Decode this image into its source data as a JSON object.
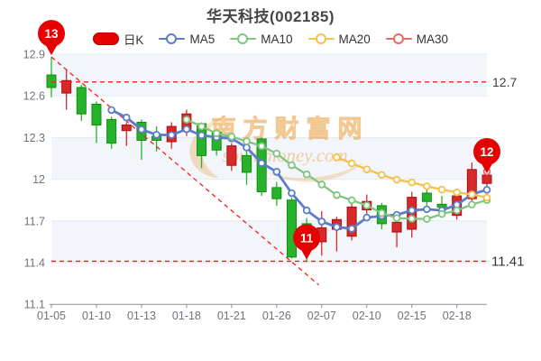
{
  "title": "华天科技(002185)",
  "legend": {
    "items": [
      {
        "label": "日K",
        "type": "rect",
        "color": "#e60000",
        "border": "#b30000"
      },
      {
        "label": "MA5",
        "type": "line",
        "color": "#5b7cc9"
      },
      {
        "label": "MA10",
        "type": "line",
        "color": "#7fc57f"
      },
      {
        "label": "MA20",
        "type": "line",
        "color": "#f5c04c"
      },
      {
        "label": "MA30",
        "type": "line",
        "color": "#e66a66"
      }
    ]
  },
  "watermark": {
    "line1": "南方财富网",
    "line2": "southmoney.com",
    "color": "#e9a249"
  },
  "chart_data": {
    "type": "candlestick",
    "title": "华天科技(002185)",
    "up_color": "#d7282a",
    "up_border": "#a80f10",
    "down_color": "#26b22a",
    "down_border": "#0e8f13",
    "grid_color": "#e3e8f3",
    "band_color": "#f2f6fb",
    "axis_text_color": "#6f737b",
    "axis_line_color": "#919191",
    "ref_line_color": "#ff1a1a",
    "y_axis": {
      "min": 11.1,
      "max": 12.9,
      "ticks": [
        12.9,
        12.6,
        12.3,
        12.0,
        11.7,
        11.4,
        11.1
      ],
      "tick_labels": [
        "12.9",
        "12.6",
        "12.3",
        "12",
        "11.7",
        "11.4",
        "11.1"
      ]
    },
    "x_ticks": {
      "indices": [
        0,
        3,
        6,
        9,
        12,
        15,
        18,
        21,
        24,
        27
      ],
      "labels": [
        "01-05",
        "01-10",
        "01-13",
        "01-18",
        "01-21",
        "01-26",
        "02-07",
        "02-10",
        "02-15",
        "02-18"
      ]
    },
    "candles": [
      {
        "date": "01-05",
        "open": 12.75,
        "high": 12.88,
        "low": 12.59,
        "close": 12.66
      },
      {
        "date": "01-06",
        "open": 12.62,
        "high": 12.79,
        "low": 12.5,
        "close": 12.71
      },
      {
        "date": "01-07",
        "open": 12.66,
        "high": 12.68,
        "low": 12.42,
        "close": 12.47
      },
      {
        "date": "01-10",
        "open": 12.54,
        "high": 12.56,
        "low": 12.26,
        "close": 12.39
      },
      {
        "date": "01-11",
        "open": 12.43,
        "high": 12.45,
        "low": 12.22,
        "close": 12.26
      },
      {
        "date": "01-12",
        "open": 12.35,
        "high": 12.41,
        "low": 12.24,
        "close": 12.39
      },
      {
        "date": "01-13",
        "open": 12.41,
        "high": 12.43,
        "low": 12.14,
        "close": 12.28
      },
      {
        "date": "01-14",
        "open": 12.31,
        "high": 12.38,
        "low": 12.2,
        "close": 12.28
      },
      {
        "date": "01-17",
        "open": 12.27,
        "high": 12.41,
        "low": 12.22,
        "close": 12.38
      },
      {
        "date": "01-18",
        "open": 12.36,
        "high": 12.5,
        "low": 12.31,
        "close": 12.47
      },
      {
        "date": "01-19",
        "open": 12.4,
        "high": 12.41,
        "low": 12.08,
        "close": 12.17
      },
      {
        "date": "01-20",
        "open": 12.34,
        "high": 12.36,
        "low": 12.17,
        "close": 12.21
      },
      {
        "date": "01-21",
        "open": 12.1,
        "high": 12.26,
        "low": 12.06,
        "close": 12.24
      },
      {
        "date": "01-24",
        "open": 12.17,
        "high": 12.2,
        "low": 11.96,
        "close": 12.05
      },
      {
        "date": "01-25",
        "open": 12.29,
        "high": 12.3,
        "low": 11.88,
        "close": 11.91
      },
      {
        "date": "01-26",
        "open": 11.94,
        "high": 11.98,
        "low": 11.81,
        "close": 11.86
      },
      {
        "date": "01-27",
        "open": 11.85,
        "high": 11.87,
        "low": 11.43,
        "close": 11.44
      },
      {
        "date": "01-28",
        "open": 11.68,
        "high": 11.72,
        "low": 11.41,
        "close": 11.62
      },
      {
        "date": "02-07",
        "open": 11.55,
        "high": 11.77,
        "low": 11.45,
        "close": 11.65
      },
      {
        "date": "02-08",
        "open": 11.64,
        "high": 11.73,
        "low": 11.48,
        "close": 11.71
      },
      {
        "date": "02-09",
        "open": 11.59,
        "high": 11.84,
        "low": 11.56,
        "close": 11.8
      },
      {
        "date": "02-10",
        "open": 11.78,
        "high": 11.89,
        "low": 11.74,
        "close": 11.84
      },
      {
        "date": "02-11",
        "open": 11.81,
        "high": 11.83,
        "low": 11.64,
        "close": 11.68
      },
      {
        "date": "02-14",
        "open": 11.62,
        "high": 11.74,
        "low": 11.51,
        "close": 11.69
      },
      {
        "date": "02-15",
        "open": 11.64,
        "high": 11.91,
        "low": 11.58,
        "close": 11.87
      },
      {
        "date": "02-16",
        "open": 11.9,
        "high": 11.93,
        "low": 11.81,
        "close": 11.84
      },
      {
        "date": "02-17",
        "open": 11.82,
        "high": 11.88,
        "low": 11.75,
        "close": 11.8
      },
      {
        "date": "02-18",
        "open": 11.74,
        "high": 11.9,
        "low": 11.71,
        "close": 11.88
      },
      {
        "date": "02-21",
        "open": 11.86,
        "high": 12.12,
        "low": 11.81,
        "close": 12.07
      },
      {
        "date": "02-22",
        "open": 11.97,
        "high": 12.08,
        "low": 11.94,
        "close": 12.03
      }
    ],
    "ma_series": [
      {
        "name": "MA5",
        "window": 5,
        "color": "#5b7cc9",
        "width": 2.8
      },
      {
        "name": "MA10",
        "window": 10,
        "color": "#7fc57f",
        "width": 2.3
      },
      {
        "name": "MA20",
        "window": 20,
        "color": "#f5c04c",
        "width": 2.3
      },
      {
        "name": "MA30",
        "window": 30,
        "color": "#e66a66",
        "width": 2.3
      }
    ],
    "annotations": {
      "hlines": [
        {
          "price": 12.7,
          "label": "12.7"
        },
        {
          "price": 11.41,
          "label": "11.41"
        }
      ],
      "trend_line": {
        "from": {
          "index": 0,
          "price": 12.88
        },
        "to": {
          "index": 17.8,
          "price": 11.24
        }
      },
      "pins": [
        {
          "label": "13",
          "index": 0,
          "price": 12.88
        },
        {
          "label": "11",
          "index": 17,
          "price": 11.41
        },
        {
          "label": "12",
          "index": 29,
          "price": 12.03
        }
      ],
      "pin_color": "#e60000"
    }
  }
}
